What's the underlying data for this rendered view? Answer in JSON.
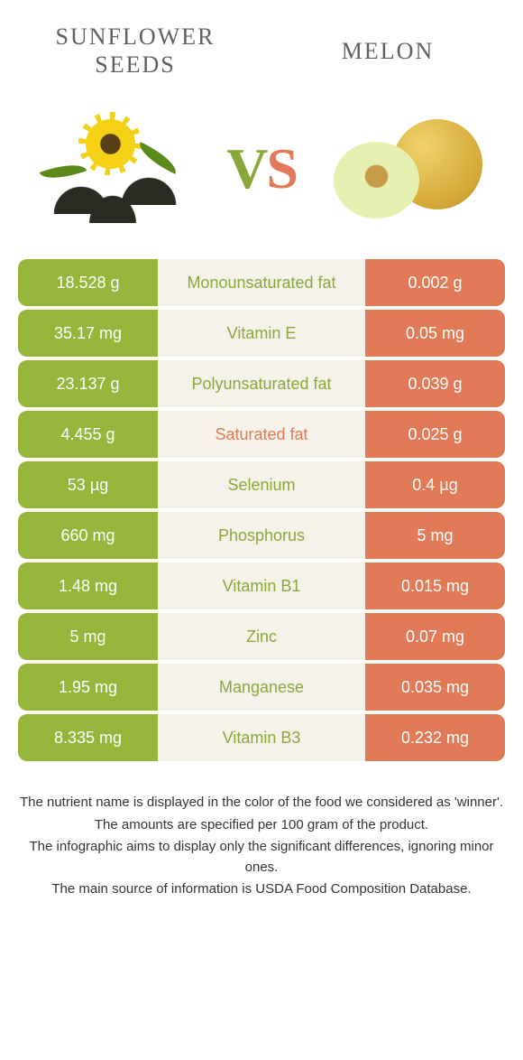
{
  "colors": {
    "left_bar": "#95b53b",
    "right_bar": "#e17a56",
    "mid_bg": "#f4f2e9",
    "label_left_accent": "#8aa83a",
    "label_right_accent": "#e17a56",
    "title_color": "#606060"
  },
  "header": {
    "left_title": "Sunflower seeds",
    "right_title": "Melon",
    "vs_v": "V",
    "vs_s": "S"
  },
  "table": {
    "type": "comparison-table",
    "columns": [
      "left_value",
      "nutrient",
      "right_value"
    ],
    "rows": [
      {
        "left": "18.528 g",
        "label": "Monounsaturated fat",
        "right": "0.002 g",
        "winner": "left"
      },
      {
        "left": "35.17 mg",
        "label": "Vitamin E",
        "right": "0.05 mg",
        "winner": "left"
      },
      {
        "left": "23.137 g",
        "label": "Polyunsaturated fat",
        "right": "0.039 g",
        "winner": "left"
      },
      {
        "left": "4.455 g",
        "label": "Saturated fat",
        "right": "0.025 g",
        "winner": "right"
      },
      {
        "left": "53 µg",
        "label": "Selenium",
        "right": "0.4 µg",
        "winner": "left"
      },
      {
        "left": "660 mg",
        "label": "Phosphorus",
        "right": "5 mg",
        "winner": "left"
      },
      {
        "left": "1.48 mg",
        "label": "Vitamin B1",
        "right": "0.015 mg",
        "winner": "left"
      },
      {
        "left": "5 mg",
        "label": "Zinc",
        "right": "0.07 mg",
        "winner": "left"
      },
      {
        "left": "1.95 mg",
        "label": "Manganese",
        "right": "0.035 mg",
        "winner": "left"
      },
      {
        "left": "8.335 mg",
        "label": "Vitamin B3",
        "right": "0.232 mg",
        "winner": "left"
      }
    ]
  },
  "footer": {
    "line1": "The nutrient name is displayed in the color of the food we considered as 'winner'.",
    "line2": "The amounts are specified per 100 gram of the product.",
    "line3": "The infographic aims to display only the significant differences, ignoring minor ones.",
    "line4": "The main source of information is USDA Food Composition Database."
  }
}
